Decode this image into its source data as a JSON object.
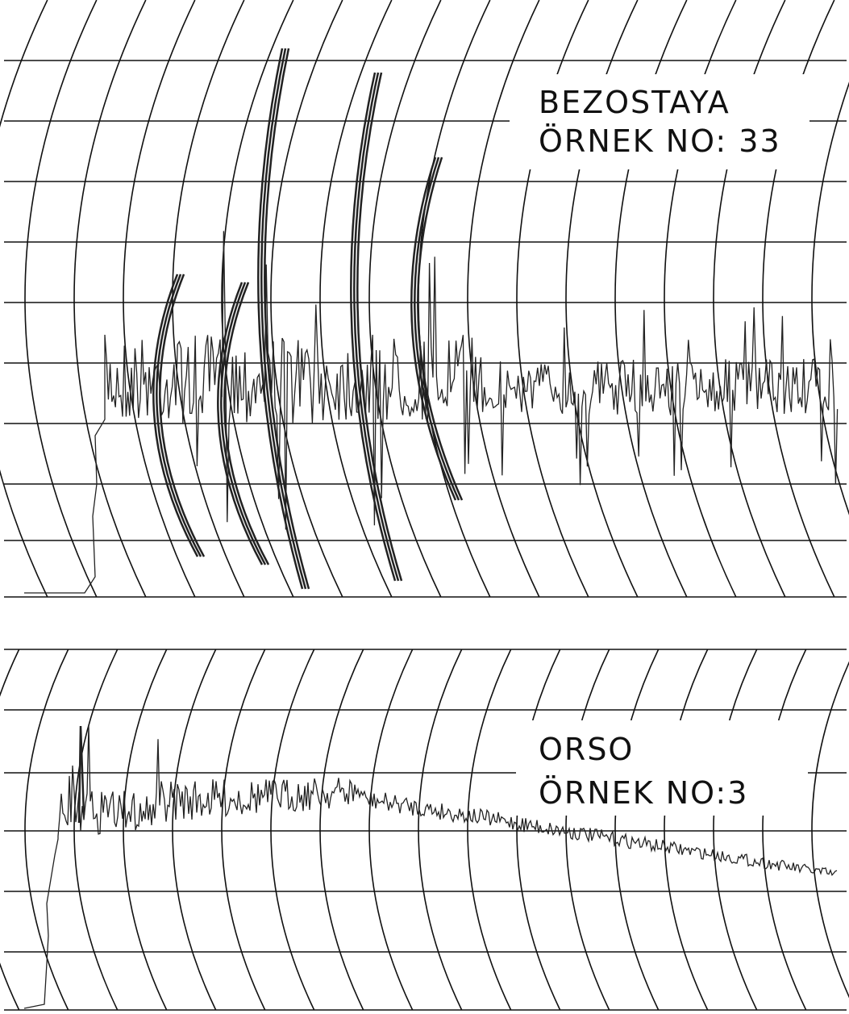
{
  "panels": [
    {
      "variety": "BEZOSTAYA",
      "sample": "ÖRNEK NO: 33"
    },
    {
      "variety": "ORSO",
      "sample": "ÖRNEK NO:3"
    }
  ]
}
